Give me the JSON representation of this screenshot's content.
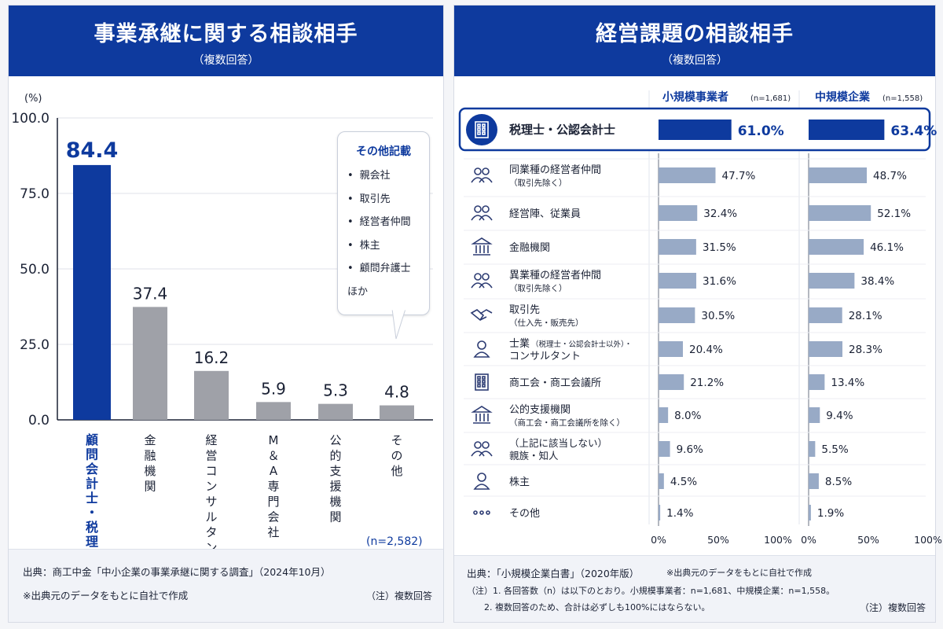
{
  "left": {
    "title": "事業承継に関する相談相手",
    "subtitle": "（複数回答）",
    "unit": "(%)",
    "n_note": "(n=2,582)",
    "source": "出典：商工中金「中小企業の事業承継に関する調査」（2024年10月）",
    "note1": "※出典元のデータをもとに自社で作成",
    "note2": "（注）複数回答",
    "callout": {
      "title": "その他記載",
      "items": [
        "親会社",
        "取引先",
        "経営者仲間",
        "株主",
        "顧問弁護士"
      ],
      "tail": "ほか"
    }
  },
  "right": {
    "title": "経営課題の相談相手",
    "subtitle": "（複数回答）",
    "source": "出典：「小規模企業白書」（2020年版）",
    "source_note": "※出典元のデータをもとに自社で作成",
    "note_line1": "（注）1. 各回答数（n）は以下のとおり。小規模事業者：n=1,681、中規模企業：n=1,558。",
    "note_line2": "2. 複数回答のため、合計は必ずしも100%にはならない。",
    "note_bottom": "（注）複数回答"
  },
  "colors": {
    "primary": "#0e3a9e",
    "bar_gray": "#9fa1a8",
    "bar_blue_light": "#98aac6"
  },
  "chart_data": [
    {
      "type": "bar",
      "title": "事業承継に関する相談相手",
      "ylabel": "(%)",
      "ylim": [
        0,
        100
      ],
      "yticks": [
        "100.0",
        "75.0",
        "50.0",
        "25.0",
        "0.0"
      ],
      "ytick_values": [
        100,
        75,
        50,
        25,
        0
      ],
      "categories": [
        "顧問会計士・税理士",
        "金融機関",
        "経営コンサルタント",
        "M＆A専門会社",
        "公的支援機関",
        "その他"
      ],
      "values": [
        84.4,
        37.4,
        16.2,
        5.9,
        5.3,
        4.8
      ],
      "labels": [
        "84.4",
        "37.4",
        "16.2",
        "5.9",
        "5.3",
        "4.8"
      ],
      "highlight_index": 0
    },
    {
      "type": "bar",
      "orientation": "horizontal",
      "title": "経営課題の相談相手",
      "xlim": [
        0,
        100
      ],
      "xticks": [
        "0%",
        "50%",
        "100%"
      ],
      "series": [
        {
          "name": "小規模事業者",
          "n": "(n=1,681)"
        },
        {
          "name": "中規模企業",
          "n": "(n=1,558)"
        }
      ],
      "rows": [
        {
          "icon": "building-icon",
          "label": "税理士・公認会計士",
          "sub": "",
          "v1": 61.0,
          "t1": "61.0%",
          "v2": 63.4,
          "t2": "63.4%",
          "highlight": true
        },
        {
          "icon": "people-icon",
          "label": "同業種の経営者仲間",
          "sub": "（取引先除く）",
          "v1": 47.7,
          "t1": "47.7%",
          "v2": 48.7,
          "t2": "48.7%"
        },
        {
          "icon": "people-icon",
          "label": "経営陣、従業員",
          "sub": "",
          "v1": 32.4,
          "t1": "32.4%",
          "v2": 52.1,
          "t2": "52.1%"
        },
        {
          "icon": "bank-icon",
          "label": "金融機関",
          "sub": "",
          "v1": 31.5,
          "t1": "31.5%",
          "v2": 46.1,
          "t2": "46.1%"
        },
        {
          "icon": "group-icon",
          "label": "異業種の経営者仲間",
          "sub": "（取引先除く）",
          "v1": 31.6,
          "t1": "31.6%",
          "v2": 38.4,
          "t2": "38.4%"
        },
        {
          "icon": "handshake-icon",
          "label": "取引先",
          "sub": "（仕入先・販売先）",
          "v1": 30.5,
          "t1": "30.5%",
          "v2": 28.1,
          "t2": "28.1%"
        },
        {
          "icon": "person-tie-icon",
          "label": "士業",
          "label_small": "（税理士・公認会計士以外）・",
          "sub_big": "コンサルタント",
          "v1": 20.4,
          "t1": "20.4%",
          "v2": 28.3,
          "t2": "28.3%"
        },
        {
          "icon": "office-icon",
          "label": "商工会・商工会議所",
          "sub": "",
          "v1": 21.2,
          "t1": "21.2%",
          "v2": 13.4,
          "t2": "13.4%"
        },
        {
          "icon": "bank-icon",
          "label": "公的支援機関",
          "sub": "（商工会・商工会議所を除く）",
          "v1": 8.0,
          "t1": "8.0%",
          "v2": 9.4,
          "t2": "9.4%"
        },
        {
          "icon": "group-icon",
          "label": "（上記に該当しない）",
          "sub_big": "親族・知人",
          "v1": 9.6,
          "t1": "9.6%",
          "v2": 5.5,
          "t2": "5.5%"
        },
        {
          "icon": "person-icon",
          "label": "株主",
          "sub": "",
          "v1": 4.5,
          "t1": "4.5%",
          "v2": 8.5,
          "t2": "8.5%"
        },
        {
          "icon": "dots-icon",
          "label": "その他",
          "sub": "",
          "v1": 1.4,
          "t1": "1.4%",
          "v2": 1.9,
          "t2": "1.9%"
        }
      ]
    }
  ]
}
